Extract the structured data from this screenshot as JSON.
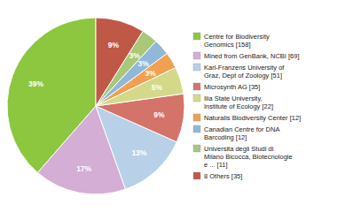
{
  "chart_data": {
    "type": "pie",
    "categories": [
      "Centre for Biodiversity\nGenomics [158]",
      "Mined from GenBank, NCBI [69]",
      "Karl-Franzens University of\nGraz, Dept of Zoology [51]",
      "Microsynth AG [35]",
      "Ilia State University,\nInstitute of Ecology [22]",
      "Naturalis Biodiversity Center [12]",
      "Canadian Centre for DNA\nBarcoding [12]",
      "Universita degli Studi di\nMilano Bicocca, Biotecnologie\ne ... [11]",
      "8 Others [35]"
    ],
    "values": [
      39,
      17,
      13,
      9,
      5,
      3,
      3,
      3,
      9
    ],
    "value_labels": [
      "39%",
      "17%",
      "13%",
      "9%",
      "5%",
      "3%",
      "3%",
      "3%",
      "9%"
    ],
    "colors": [
      "#8dc63f",
      "#d4aed4",
      "#b8d0e8",
      "#d4736a",
      "#d4d98a",
      "#f0a050",
      "#90b8d8",
      "#a8c87a",
      "#c05848"
    ],
    "data_labels": true,
    "legend": "right"
  }
}
